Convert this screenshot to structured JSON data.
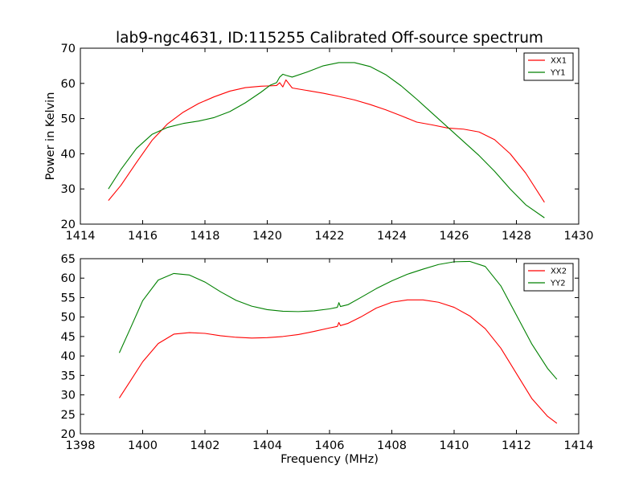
{
  "figure": {
    "title": "lab9-ngc4631, ID:115255 Calibrated Off-source spectrum"
  },
  "chart_data": [
    {
      "type": "line",
      "title": "",
      "xlabel": "",
      "ylabel": "Power in Kelvin",
      "xlim": [
        1414,
        1430
      ],
      "ylim": [
        20,
        70
      ],
      "xticks": [
        "1414",
        "1416",
        "1418",
        "1420",
        "1422",
        "1424",
        "1426",
        "1428",
        "1430"
      ],
      "yticks": [
        "20",
        "30",
        "40",
        "50",
        "60",
        "70"
      ],
      "grid": false,
      "legend_position": "top-right",
      "series": [
        {
          "name": "XX1",
          "color": "#ff0000",
          "x": [
            1414.9,
            1415.3,
            1415.8,
            1416.3,
            1416.8,
            1417.3,
            1417.8,
            1418.3,
            1418.8,
            1419.3,
            1419.8,
            1420.1,
            1420.3,
            1420.4,
            1420.5,
            1420.6,
            1420.8,
            1421.2,
            1421.8,
            1422.3,
            1422.8,
            1423.3,
            1423.8,
            1424.3,
            1424.8,
            1425.3,
            1425.8,
            1426.3,
            1426.8,
            1427.3,
            1427.8,
            1428.3,
            1428.9
          ],
          "y": [
            26.7,
            31.0,
            37.5,
            43.8,
            48.5,
            51.8,
            54.3,
            56.2,
            57.8,
            58.8,
            59.2,
            59.3,
            59.4,
            60.2,
            59.0,
            61.0,
            58.7,
            58.1,
            57.2,
            56.3,
            55.3,
            54.0,
            52.5,
            50.8,
            49.0,
            48.2,
            47.3,
            47.0,
            46.2,
            44.0,
            40.0,
            34.5,
            26.2
          ]
        },
        {
          "name": "YY1",
          "color": "#008000",
          "x": [
            1414.9,
            1415.3,
            1415.8,
            1416.3,
            1416.8,
            1417.3,
            1417.8,
            1418.3,
            1418.8,
            1419.3,
            1419.8,
            1420.1,
            1420.3,
            1420.4,
            1420.5,
            1420.6,
            1420.8,
            1421.3,
            1421.8,
            1422.3,
            1422.8,
            1423.3,
            1423.8,
            1424.3,
            1424.8,
            1425.3,
            1425.8,
            1426.3,
            1426.8,
            1427.3,
            1427.8,
            1428.3,
            1428.9
          ],
          "y": [
            30.0,
            35.5,
            41.5,
            45.5,
            47.5,
            48.6,
            49.3,
            50.3,
            52.0,
            54.5,
            57.5,
            59.5,
            60.2,
            61.8,
            62.6,
            62.3,
            61.8,
            63.3,
            65.0,
            65.9,
            65.9,
            64.8,
            62.5,
            59.3,
            55.5,
            51.5,
            47.5,
            43.5,
            39.5,
            35.0,
            30.0,
            25.5,
            21.8
          ]
        }
      ]
    },
    {
      "type": "line",
      "title": "",
      "xlabel": "Frequency (MHz)",
      "ylabel": "",
      "xlim": [
        1398,
        1414
      ],
      "ylim": [
        20,
        65
      ],
      "xticks": [
        "1398",
        "1400",
        "1402",
        "1404",
        "1406",
        "1408",
        "1410",
        "1412",
        "1414"
      ],
      "yticks": [
        "20",
        "25",
        "30",
        "35",
        "40",
        "45",
        "50",
        "55",
        "60",
        "65"
      ],
      "grid": false,
      "legend_position": "top-right",
      "series": [
        {
          "name": "XX2",
          "color": "#ff0000",
          "x": [
            1399.25,
            1399.6,
            1400.0,
            1400.5,
            1401.0,
            1401.5,
            1402.0,
            1402.5,
            1403.0,
            1403.5,
            1404.0,
            1404.5,
            1405.0,
            1405.5,
            1406.0,
            1406.25,
            1406.3,
            1406.35,
            1406.6,
            1407.0,
            1407.5,
            1408.0,
            1408.5,
            1409.0,
            1409.5,
            1410.0,
            1410.5,
            1411.0,
            1411.5,
            1412.0,
            1412.5,
            1413.0,
            1413.3
          ],
          "y": [
            29.2,
            33.5,
            38.5,
            43.2,
            45.6,
            46.0,
            45.8,
            45.2,
            44.8,
            44.6,
            44.7,
            45.0,
            45.5,
            46.3,
            47.2,
            47.6,
            48.6,
            47.8,
            48.4,
            50.0,
            52.3,
            53.8,
            54.4,
            54.4,
            53.8,
            52.5,
            50.3,
            47.0,
            42.0,
            35.5,
            29.0,
            24.5,
            22.7
          ]
        },
        {
          "name": "YY2",
          "color": "#008000",
          "x": [
            1399.25,
            1399.6,
            1400.0,
            1400.5,
            1401.0,
            1401.5,
            1402.0,
            1402.5,
            1403.0,
            1403.5,
            1404.0,
            1404.5,
            1405.0,
            1405.5,
            1406.0,
            1406.25,
            1406.3,
            1406.35,
            1406.6,
            1407.0,
            1407.5,
            1408.0,
            1408.5,
            1409.0,
            1409.5,
            1410.0,
            1410.5,
            1411.0,
            1411.5,
            1412.0,
            1412.5,
            1413.0,
            1413.3
          ],
          "y": [
            40.8,
            47.0,
            54.2,
            59.5,
            61.2,
            60.8,
            59.0,
            56.5,
            54.3,
            52.8,
            51.9,
            51.5,
            51.4,
            51.6,
            52.1,
            52.5,
            53.7,
            52.7,
            53.2,
            55.0,
            57.3,
            59.3,
            61.0,
            62.3,
            63.5,
            64.2,
            64.3,
            63.0,
            58.0,
            50.5,
            43.0,
            36.8,
            34.0
          ]
        }
      ]
    }
  ]
}
